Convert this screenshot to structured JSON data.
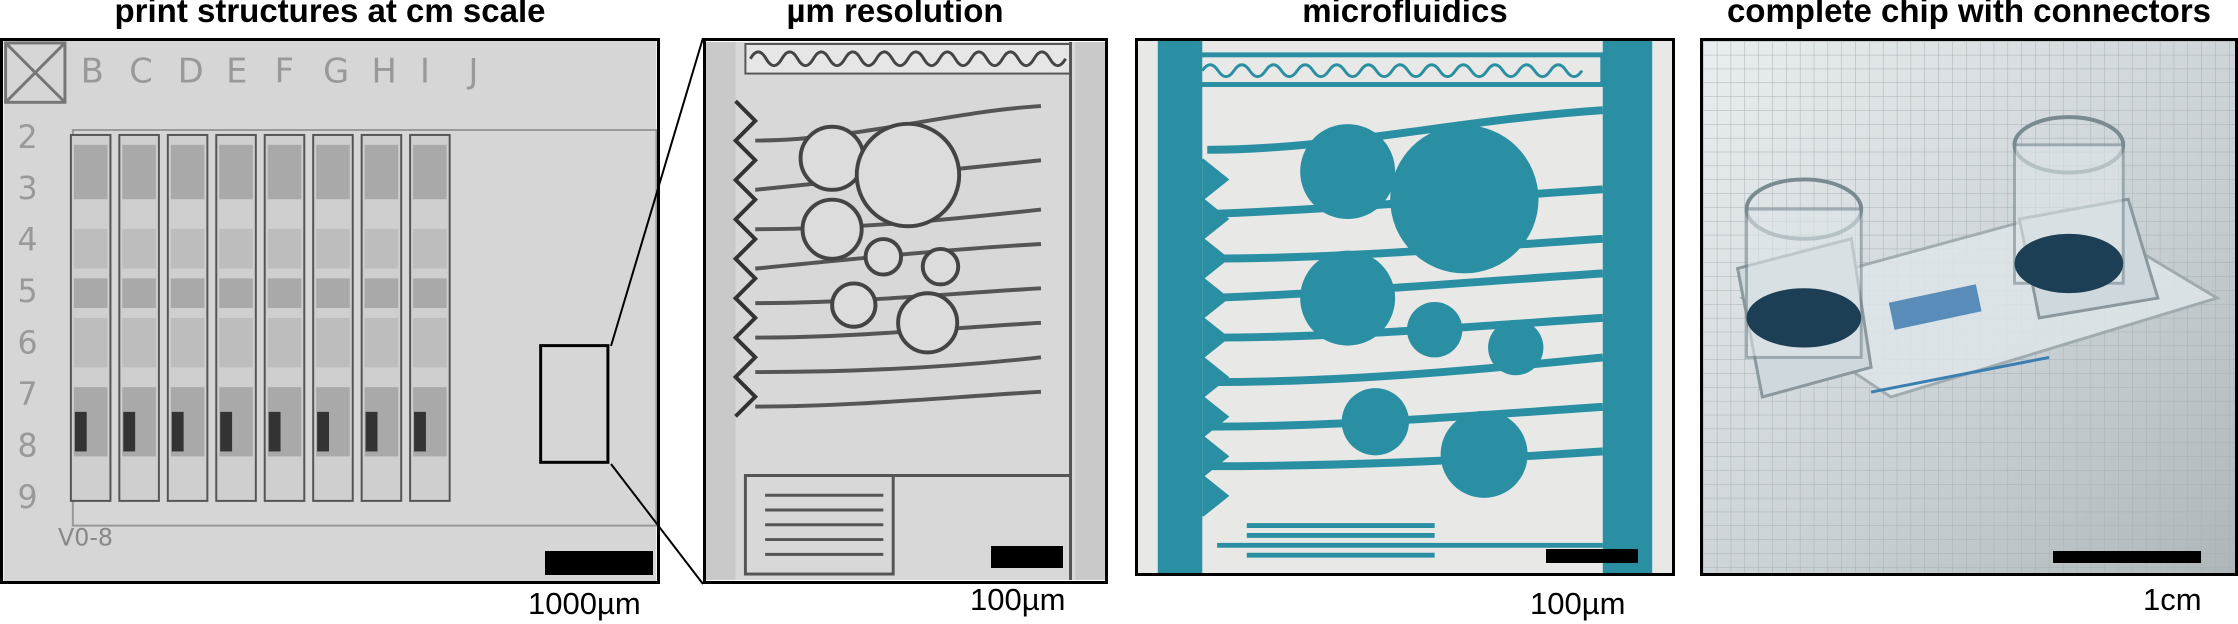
{
  "panels": [
    {
      "title": "print structures at cm scale",
      "scale_label": "1000µm"
    },
    {
      "title": "µm resolution",
      "scale_label": "100µm"
    },
    {
      "title": "microfluidics",
      "scale_label": "100µm"
    },
    {
      "title": "complete chip with connectors",
      "scale_label": "1cm"
    }
  ],
  "panel1": {
    "column_letters": [
      "B",
      "C",
      "D",
      "E",
      "F",
      "G",
      "H",
      "I",
      "J"
    ],
    "row_numbers": [
      "2",
      "3",
      "4",
      "5",
      "6",
      "7",
      "8",
      "9"
    ],
    "version_label": "V0-8"
  },
  "colors": {
    "microfluidic_dye": "#2b8fa3",
    "dye_dark": "#1f6f82",
    "grayscale_bg": "#dcdcdc"
  }
}
